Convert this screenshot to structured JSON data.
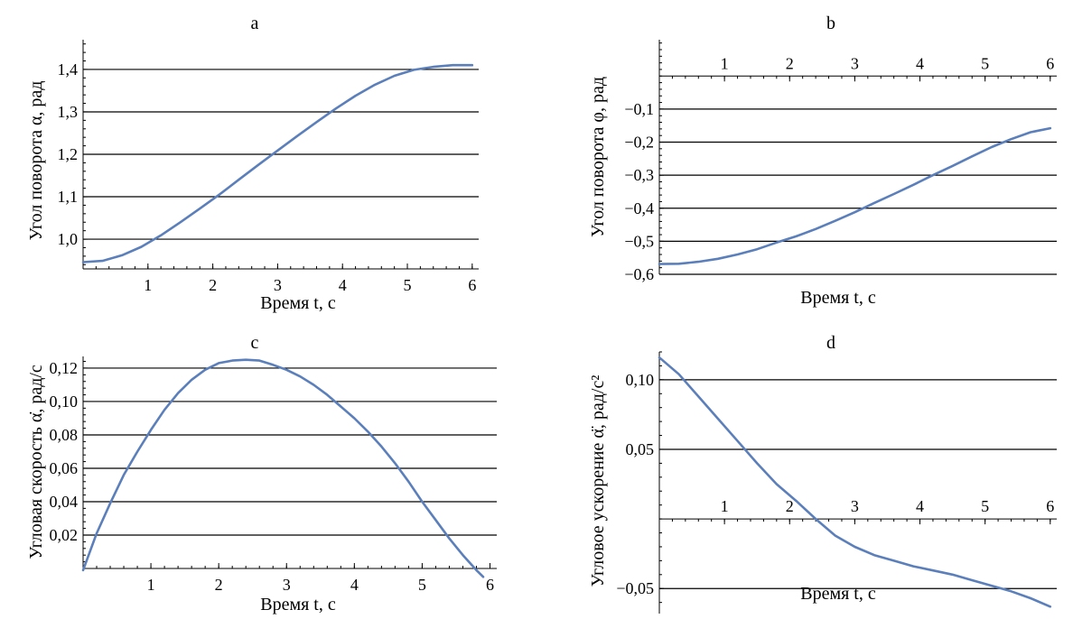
{
  "figure": {
    "curve_color": "#5b7fba",
    "grid_color": "#000000"
  },
  "chart_data": [
    {
      "type": "line",
      "panel": "a",
      "xlabel": "Время t, с",
      "ylabel": "Угол поворота α, рад",
      "xlim": [
        0,
        6.1
      ],
      "ylim": [
        0.93,
        1.47
      ],
      "xticks": [
        1,
        2,
        3,
        4,
        5,
        6
      ],
      "xtick_labels": [
        "1",
        "2",
        "3",
        "4",
        "5",
        "6"
      ],
      "yticks": [
        1.0,
        1.1,
        1.2,
        1.3,
        1.4
      ],
      "ytick_labels": [
        "1,0",
        "1,1",
        "1,2",
        "1,3",
        "1,4"
      ],
      "grid": "horizontal at y ticks",
      "x_axis_at": 0.93,
      "series": [
        {
          "x": [
            0,
            0.3,
            0.6,
            0.9,
            1.2,
            1.5,
            1.8,
            2.1,
            2.4,
            2.7,
            3.0,
            3.3,
            3.6,
            3.9,
            4.2,
            4.5,
            4.8,
            5.1,
            5.4,
            5.7,
            6.0
          ],
          "values": [
            0.946,
            0.949,
            0.962,
            0.982,
            1.009,
            1.04,
            1.072,
            1.105,
            1.14,
            1.175,
            1.209,
            1.243,
            1.276,
            1.308,
            1.338,
            1.364,
            1.385,
            1.399,
            1.406,
            1.41,
            1.41
          ]
        }
      ]
    },
    {
      "type": "line",
      "panel": "b",
      "xlabel": "Время t, с",
      "ylabel": "Угол поворота φ, рад",
      "xlim": [
        0,
        6.1
      ],
      "ylim": [
        -0.6,
        0.11
      ],
      "xticks": [
        1,
        2,
        3,
        4,
        5,
        6
      ],
      "xtick_labels": [
        "1",
        "2",
        "3",
        "4",
        "5",
        "6"
      ],
      "yticks": [
        -0.1,
        -0.2,
        -0.3,
        -0.4,
        -0.5,
        -0.6
      ],
      "ytick_labels": [
        "−0,1",
        "−0,2",
        "−0,3",
        "−0,4",
        "−0,5",
        "−0,6"
      ],
      "grid": "horizontal at y ticks",
      "x_axis_at": 0,
      "series": [
        {
          "x": [
            0,
            0.3,
            0.6,
            0.9,
            1.2,
            1.5,
            1.8,
            2.1,
            2.4,
            2.7,
            3.0,
            3.3,
            3.6,
            3.9,
            4.2,
            4.5,
            4.8,
            5.1,
            5.4,
            5.7,
            6.0
          ],
          "values": [
            -0.569,
            -0.568,
            -0.562,
            -0.553,
            -0.54,
            -0.524,
            -0.504,
            -0.485,
            -0.463,
            -0.438,
            -0.412,
            -0.384,
            -0.357,
            -0.329,
            -0.3,
            -0.272,
            -0.243,
            -0.215,
            -0.191,
            -0.17,
            -0.158
          ]
        }
      ]
    },
    {
      "type": "line",
      "panel": "c",
      "xlabel": "Время t, с",
      "ylabel": "Угловая скорость α̇, рад/с",
      "xlim": [
        0,
        6.1
      ],
      "ylim": [
        0,
        0.127
      ],
      "xticks": [
        1,
        2,
        3,
        4,
        5,
        6
      ],
      "xtick_labels": [
        "1",
        "2",
        "3",
        "4",
        "5",
        "6"
      ],
      "yticks": [
        0.02,
        0.04,
        0.06,
        0.08,
        0.1,
        0.12
      ],
      "ytick_labels": [
        "0,02",
        "0,04",
        "0,06",
        "0,08",
        "0,10",
        "0,12"
      ],
      "grid": "horizontal at y ticks",
      "x_axis_at": 0,
      "series": [
        {
          "x": [
            0,
            0.2,
            0.4,
            0.6,
            0.8,
            1.0,
            1.2,
            1.4,
            1.6,
            1.8,
            2.0,
            2.2,
            2.4,
            2.6,
            2.8,
            3.0,
            3.2,
            3.4,
            3.6,
            3.8,
            4.0,
            4.2,
            4.4,
            4.6,
            4.8,
            5.0,
            5.2,
            5.4,
            5.6,
            5.8,
            5.9
          ],
          "values": [
            -0.001,
            0.021,
            0.039,
            0.056,
            0.07,
            0.083,
            0.095,
            0.105,
            0.113,
            0.119,
            0.123,
            0.1245,
            0.125,
            0.1245,
            0.122,
            0.119,
            0.115,
            0.11,
            0.104,
            0.097,
            0.09,
            0.082,
            0.073,
            0.063,
            0.052,
            0.04,
            0.029,
            0.018,
            0.008,
            -0.001,
            -0.005
          ]
        }
      ]
    },
    {
      "type": "line",
      "panel": "d",
      "xlabel": "Время t, с",
      "ylabel": "Угловое ускорение α̈, рад/с²",
      "xlim": [
        0,
        6.1
      ],
      "ylim": [
        -0.068,
        0.12
      ],
      "xticks": [
        1,
        2,
        3,
        4,
        5,
        6
      ],
      "xtick_labels": [
        "1",
        "2",
        "3",
        "4",
        "5",
        "6"
      ],
      "yticks": [
        0.1,
        0.05,
        -0.05
      ],
      "ytick_labels": [
        "0,10",
        "0,05",
        "−0,05"
      ],
      "grid": "horizontal at y ticks",
      "x_axis_at": 0,
      "series": [
        {
          "x": [
            0,
            0.3,
            0.6,
            0.9,
            1.2,
            1.5,
            1.8,
            2.1,
            2.4,
            2.7,
            3.0,
            3.3,
            3.6,
            3.9,
            4.2,
            4.5,
            4.8,
            5.1,
            5.4,
            5.7,
            6.0
          ],
          "values": [
            0.116,
            0.104,
            0.088,
            0.072,
            0.056,
            0.04,
            0.025,
            0.013,
            0.0,
            -0.012,
            -0.02,
            -0.026,
            -0.03,
            -0.034,
            -0.037,
            -0.04,
            -0.044,
            -0.048,
            -0.052,
            -0.057,
            -0.063
          ]
        }
      ]
    }
  ]
}
